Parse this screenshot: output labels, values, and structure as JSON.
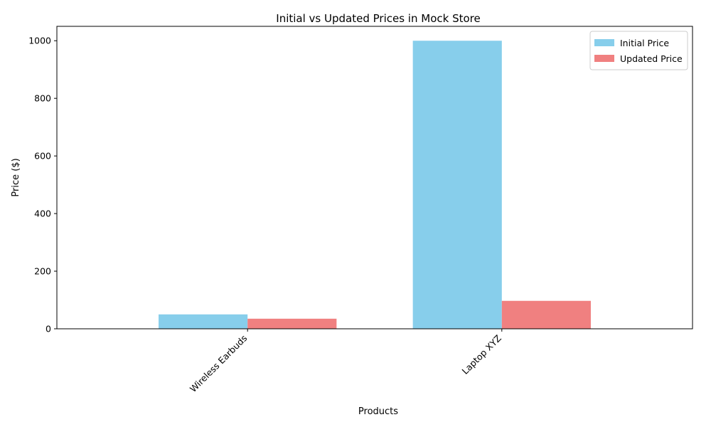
{
  "chart_data": {
    "type": "bar",
    "title": "Initial vs Updated Prices in Mock Store",
    "xlabel": "Products",
    "ylabel": "Price ($)",
    "categories": [
      "Wireless Earbuds",
      "Laptop XYZ"
    ],
    "series": [
      {
        "name": "Initial Price",
        "values": [
          50,
          1000
        ],
        "color": "#87ceeb"
      },
      {
        "name": "Updated Price",
        "values": [
          35,
          97
        ],
        "color": "#f08080"
      }
    ],
    "ylim": [
      0,
      1050
    ],
    "yticks": [
      0,
      200,
      400,
      600,
      800,
      1000
    ],
    "grid": false,
    "legend_position": "top-right"
  }
}
